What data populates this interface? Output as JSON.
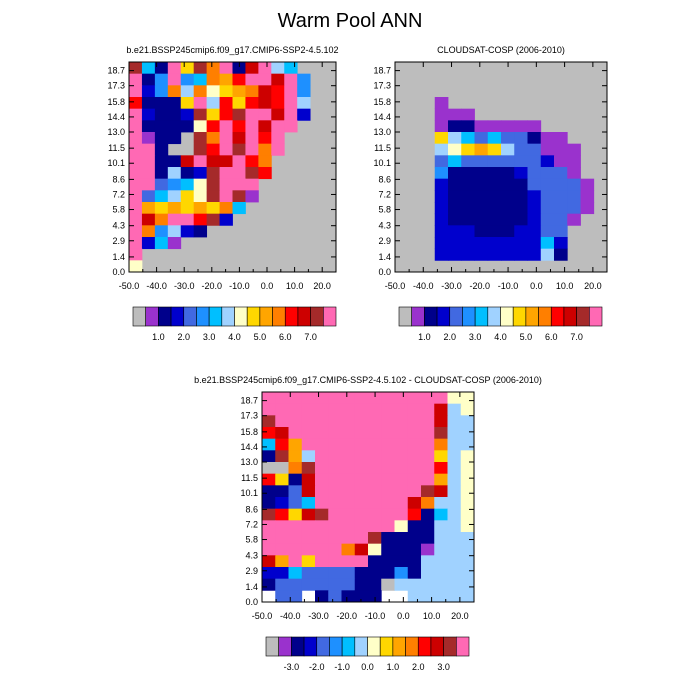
{
  "title": "Warm Pool ANN",
  "palettes": {
    "abs": [
      "#bdbdbd",
      "#9a32cd",
      "#00008b",
      "#0000cd",
      "#4169e1",
      "#1e90ff",
      "#00bfff",
      "#a0d2ff",
      "#ffffc8",
      "#ffd700",
      "#ffa500",
      "#ff7f00",
      "#ff0000",
      "#cd0000",
      "#a52a2a",
      "#ff69b4"
    ],
    "diff": [
      "#bdbdbd",
      "#9a32cd",
      "#00008b",
      "#0000cd",
      "#4169e1",
      "#1e90ff",
      "#00bfff",
      "#a0d2ff",
      "#ffffc8",
      "#ffd700",
      "#ffa500",
      "#ff7f00",
      "#ff0000",
      "#cd0000",
      "#a52a2a",
      "#ff69b4"
    ]
  },
  "chart_data": [
    {
      "type": "heatmap",
      "title": "b.e21.BSSP245cmip6.f09_g17.CMIP6-SSP2-4.5.102",
      "x_ticks": [
        "-50.0",
        "-40.0",
        "-30.0",
        "-20.0",
        "-10.0",
        "0.0",
        "10.0",
        "20.0"
      ],
      "y_ticks": [
        "0.0",
        "1.4",
        "2.9",
        "4.3",
        "5.8",
        "7.2",
        "8.6",
        "10.1",
        "11.5",
        "13.0",
        "14.4",
        "15.8",
        "17.3",
        "18.7"
      ],
      "xlim": [
        -50,
        25
      ],
      "ylim": [
        0,
        19.5
      ],
      "colorbar_labels": [
        "1.0",
        "2.0",
        "3.0",
        "4.0",
        "5.0",
        "6.0",
        "7.0"
      ],
      "colorbar_levels": [
        "-0.5",
        "0.5",
        "1.0",
        "1.5",
        "2.0",
        "2.5",
        "3.0",
        "3.5",
        "4.0",
        "4.5",
        "5.0",
        "5.5",
        "6.0",
        "6.5",
        "7.0",
        "7.5"
      ],
      "background": "#bdbdbd",
      "rows_top_to_bottom": [
        "14 6 2 15 9 14 11 15 2 13 15 7 6 . . .",
        "15 2 5 15 5 6 11 10 12 15 15 13 15 5 . .",
        "15 3 5 11 7 11 8 9 10 11 13 12 15 5 . .",
        "12 2 2 2 9 15 7 12 9 12 13 12 15 7 . .",
        "15 3 2 2 3 14 9 12 14 15 15 13 15 3 . .",
        "15 2 2 2 2 8 12 15 12 15 13 15 15 . . .",
        "15 1 2 2 . 14 11 15 13 15 12 15 . . . .",
        "15 15 2 . 0 14 12 15 14 15 11 15 . . . .",
        "15 15 2 2 13 15 13 13 15 12 11 . . . . .",
        "15 15 2 7 2 3 14 15 15 14 12 . . . . .",
        "15 15 4 5 6 8 14 15 15 15 . . . . . .",
        "15 4 6 7 9 8 14 15 14 1 . . . . . .",
        "15 10 9 10 9 10 9 11 6 . . . . . . .",
        "15 13 11 15 15 12 14 3 . . . . . . . .",
        "15 11 5 7 3 2 . . . . . . . . . .",
        "15 3 6 1 . . . . . . . . . . . .",
        "15 . . . . . . . . . . . . . . .",
        "8 . . . . . . . . . . . . . . ."
      ]
    },
    {
      "type": "heatmap",
      "title": "CLOUDSAT-COSP (2006-2010)",
      "x_ticks": [
        "-50.0",
        "-40.0",
        "-30.0",
        "-20.0",
        "-10.0",
        "0.0",
        "10.0",
        "20.0"
      ],
      "y_ticks": [
        "0.0",
        "1.4",
        "2.9",
        "4.3",
        "5.8",
        "7.2",
        "8.6",
        "10.1",
        "11.5",
        "13.0",
        "14.4",
        "15.8",
        "17.3",
        "18.7"
      ],
      "xlim": [
        -50,
        25
      ],
      "ylim": [
        0,
        19.5
      ],
      "colorbar_labels": [
        "1.0",
        "2.0",
        "3.0",
        "4.0",
        "5.0",
        "6.0",
        "7.0"
      ],
      "colorbar_levels": [
        "-0.5",
        "0.5",
        "1.0",
        "1.5",
        "2.0",
        "2.5",
        "3.0",
        "3.5",
        "4.0",
        "4.5",
        "5.0",
        "5.5",
        "6.0",
        "6.5",
        "7.0",
        "7.5"
      ],
      "background": "#bdbdbd",
      "rows_top_to_bottom": [
        ". . . . . . . . . . . . . . . .",
        ". . . . . . . . . . . . . . . .",
        ". . . . . . . . . . . . . . . .",
        ". . . 1 . . . . . . . . . . . .",
        ". . . 1 1 1 . . . . . . . . . .",
        ". . . 1 2 2 1 1 1 1 1 . . . . .",
        ". . . 9 7 6 4 6 4 4 2 1 1 . . .",
        ". . . 7 8 9 10 9 7 4 4 1 1 1 . .",
        ". . . 4 6 4 4 4 4 4 4 3 1 1 . .",
        ". . . 5 2 2 2 2 2 3 4 4 4 1 . .",
        ". . . 3 2 2 2 2 2 2 4 4 4 4 1 .",
        ". . . 3 2 2 2 2 2 2 3 4 4 4 1 .",
        ". . . 3 2 2 2 2 2 2 3 4 4 4 1 .",
        ". . . 3 2 2 2 2 2 2 3 4 4 1 . .",
        ". . . 3 3 3 2 2 2 3 3 4 4 . . .",
        ". . . 3 3 3 3 3 3 3 3 6 3 . . .",
        ". . . 3 3 3 3 3 3 3 3 7 2 . . .",
        ". . . . . . . . . . . . . . . ."
      ]
    },
    {
      "type": "heatmap",
      "title": "b.e21.BSSP245cmip6.f09_g17.CMIP6-SSP2-4.5.102 - CLOUDSAT-COSP (2006-2010)",
      "x_ticks": [
        "-50.0",
        "-40.0",
        "-30.0",
        "-20.0",
        "-10.0",
        "0.0",
        "10.0",
        "20.0"
      ],
      "y_ticks": [
        "0.0",
        "1.4",
        "2.9",
        "4.3",
        "5.8",
        "7.2",
        "8.6",
        "10.1",
        "11.5",
        "13.0",
        "14.4",
        "15.8",
        "17.3",
        "18.7"
      ],
      "xlim": [
        -50,
        25
      ],
      "ylim": [
        0,
        19.5
      ],
      "colorbar_labels": [
        "-3.0",
        "-2.0",
        "-1.0",
        "0.0",
        "1.0",
        "2.0",
        "3.0"
      ],
      "colorbar_levels": [
        "-4.0",
        "-3.5",
        "-3.0",
        "-2.5",
        "-2.0",
        "-1.5",
        "-1.0",
        "-0.5",
        "0.0",
        "0.5",
        "1.0",
        "1.5",
        "2.0",
        "2.5",
        "3.0",
        "3.5"
      ],
      "background": "#ffffff",
      "rows_top_to_bottom": [
        "15 15 15 15 15 15 15 15 15 15 15 15 15 15 8 8",
        "15 15 15 15 15 15 15 15 15 15 15 15 15 13 7 8",
        "14 15 15 15 15 15 15 15 15 15 15 15 15 13 7 7",
        "12 13 15 15 15 15 15 15 15 15 15 15 15 14 7 7",
        "6 12 10 15 15 15 15 15 15 15 15 15 15 11 7 7",
        "2 14 10 7 15 15 15 15 15 15 15 15 15 9 7 8",
        "0 0 11 14 15 15 15 15 15 15 15 15 15 12 7 8",
        "12 9 2 13 15 15 15 15 15 15 15 15 15 10 7 8",
        "2 2 4 13 15 15 15 15 15 15 15 15 14 13 7 8",
        "2 3 4 6 15 15 15 15 15 15 15 13 11 7 7 8",
        "14 12 9 13 14 15 15 15 15 15 15 12 2 6 7 8",
        "15 15 15 15 15 15 15 15 15 15 8 2 2 7 7 8",
        "15 15 15 15 15 15 15 15 14 2 2 2 2 7 7 7",
        "15 15 15 15 15 15 11 13 8 2 2 2 1 7 7 7",
        "13 10 15 9 15 15 15 15 2 2 2 2 7 7 7 7",
        "3 3 6 4 4 4 4 2 2 2 5 2 7 7 7 7",
        "2 4 4 4 4 4 4 2 2 0 7 7 7 7 7 7",
        ". 4 4 . 2 4 2 2 2 . . 7 7 7 7 7"
      ]
    }
  ]
}
